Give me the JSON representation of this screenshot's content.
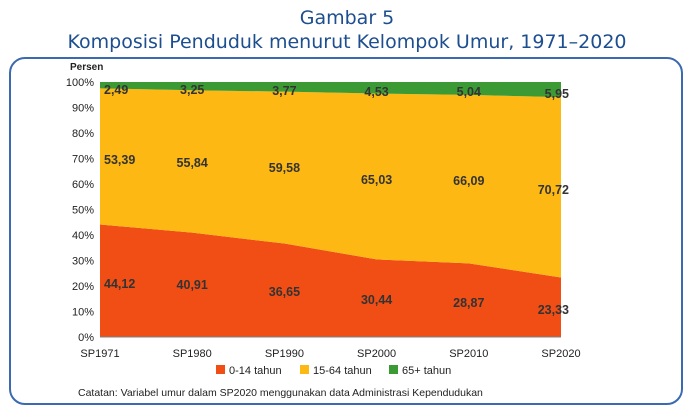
{
  "header": {
    "title": "Gambar 5",
    "subtitle": "Komposisi Penduduk menurut Kelompok Umur, 1971–2020"
  },
  "note": "Catatan: Variabel umur dalam SP2020 menggunakan data Administrasi Kependudukan",
  "chart_data": {
    "type": "area",
    "stacked": true,
    "normalized": true,
    "ylabel": "Persen",
    "ylim": [
      0,
      100
    ],
    "yticks": [
      "0%",
      "10%",
      "20%",
      "30%",
      "40%",
      "50%",
      "60%",
      "70%",
      "80%",
      "90%",
      "100%"
    ],
    "categories": [
      "SP1971",
      "SP1980",
      "SP1990",
      "SP2000",
      "SP2010",
      "SP2020"
    ],
    "legend_position": "bottom",
    "grid": false,
    "series": [
      {
        "name": "0-14 tahun",
        "color": "#f04e15",
        "values": [
          44.12,
          40.91,
          36.65,
          30.44,
          28.87,
          23.33
        ]
      },
      {
        "name": "15-64 tahun",
        "color": "#fdb813",
        "values": [
          53.39,
          55.84,
          59.58,
          65.03,
          66.09,
          70.72
        ]
      },
      {
        "name": "65+ tahun",
        "color": "#3c9a34",
        "values": [
          2.49,
          3.25,
          3.77,
          4.53,
          5.04,
          5.95
        ]
      }
    ],
    "data_labels": [
      [
        "44,12",
        "40,91",
        "36,65",
        "30,44",
        "28,87",
        "23,33"
      ],
      [
        "53,39",
        "55,84",
        "59,58",
        "65,03",
        "66,09",
        "70,72"
      ],
      [
        "2,49",
        "3,25",
        "3,77",
        "4,53",
        "5,04",
        "5,95"
      ]
    ]
  }
}
